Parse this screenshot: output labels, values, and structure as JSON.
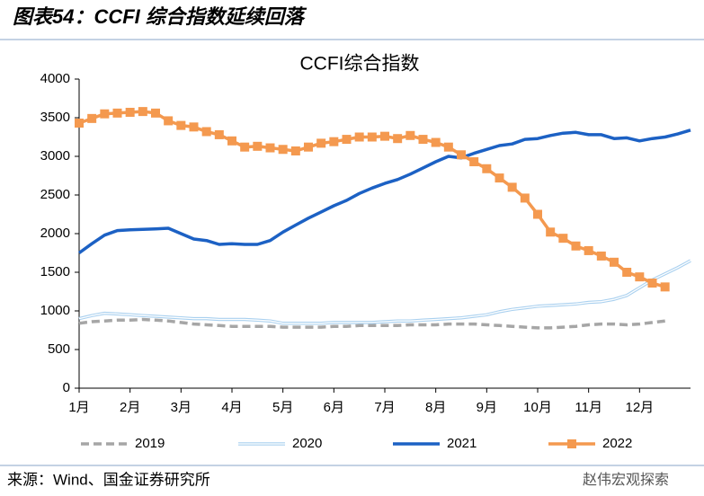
{
  "page_title": "图表54：CCFI 综合指数延续回落",
  "source": "来源：Wind、国金证券研究所",
  "watermark": "赵伟宏观探索",
  "chart_data": {
    "type": "line",
    "title": "CCFI综合指数",
    "x": [
      1,
      1.25,
      1.5,
      1.75,
      2,
      2.25,
      2.5,
      2.75,
      3,
      3.25,
      3.5,
      3.75,
      4,
      4.25,
      4.5,
      4.75,
      5,
      5.25,
      5.5,
      5.75,
      6,
      6.25,
      6.5,
      6.75,
      7,
      7.25,
      7.5,
      7.75,
      8,
      8.25,
      8.5,
      8.75,
      9,
      9.25,
      9.5,
      9.75,
      10,
      10.25,
      10.5,
      10.75,
      11,
      11.25,
      11.5,
      11.75,
      12,
      12.25,
      12.5,
      12.75,
      13
    ],
    "xlim": [
      1,
      13
    ],
    "xticks": [
      {
        "value": 1,
        "label": "1月"
      },
      {
        "value": 2,
        "label": "2月"
      },
      {
        "value": 3,
        "label": "3月"
      },
      {
        "value": 4,
        "label": "4月"
      },
      {
        "value": 5,
        "label": "5月"
      },
      {
        "value": 6,
        "label": "6月"
      },
      {
        "value": 7,
        "label": "7月"
      },
      {
        "value": 8,
        "label": "8月"
      },
      {
        "value": 9,
        "label": "9月"
      },
      {
        "value": 10,
        "label": "10月"
      },
      {
        "value": 11,
        "label": "11月"
      },
      {
        "value": 12,
        "label": "12月"
      }
    ],
    "ylim": [
      0,
      4000
    ],
    "yticks": [
      0,
      500,
      1000,
      1500,
      2000,
      2500,
      3000,
      3500,
      4000
    ],
    "grid": false,
    "legend": "bottom",
    "series": [
      {
        "name": "2019",
        "color": "#a6a6a6",
        "line_style": "dashed",
        "values": [
          840,
          860,
          870,
          880,
          880,
          890,
          880,
          870,
          850,
          830,
          820,
          810,
          800,
          800,
          800,
          800,
          790,
          790,
          790,
          790,
          800,
          800,
          810,
          810,
          810,
          810,
          820,
          820,
          820,
          830,
          830,
          830,
          820,
          810,
          800,
          790,
          780,
          780,
          790,
          800,
          820,
          830,
          830,
          820,
          830,
          850,
          870,
          null,
          null
        ]
      },
      {
        "name": "2020",
        "color": "#a9d0ef",
        "line_style": "double",
        "values": [
          900,
          940,
          970,
          960,
          950,
          940,
          930,
          920,
          910,
          900,
          900,
          890,
          890,
          890,
          880,
          870,
          840,
          840,
          840,
          840,
          850,
          850,
          850,
          850,
          860,
          870,
          870,
          880,
          890,
          900,
          910,
          930,
          950,
          990,
          1020,
          1040,
          1060,
          1070,
          1080,
          1090,
          1110,
          1120,
          1150,
          1200,
          1300,
          1400,
          1480,
          1560,
          1650
        ]
      },
      {
        "name": "2021",
        "color": "#1c61c4",
        "line_style": "solid",
        "values": [
          1750,
          1870,
          1980,
          2040,
          2050,
          2055,
          2060,
          2070,
          2000,
          1930,
          1910,
          1860,
          1870,
          1860,
          1860,
          1910,
          2020,
          2110,
          2200,
          2280,
          2360,
          2430,
          2520,
          2590,
          2650,
          2700,
          2770,
          2850,
          2930,
          3000,
          2980,
          3040,
          3090,
          3140,
          3160,
          3220,
          3230,
          3270,
          3300,
          3310,
          3280,
          3280,
          3230,
          3240,
          3200,
          3230,
          3250,
          3290,
          3340
        ]
      },
      {
        "name": "2022",
        "color": "#f4994f",
        "line_style": "solid",
        "marker": "square",
        "values": [
          3430,
          3490,
          3550,
          3560,
          3570,
          3580,
          3560,
          3460,
          3400,
          3380,
          3320,
          3280,
          3200,
          3120,
          3130,
          3110,
          3090,
          3070,
          3120,
          3170,
          3190,
          3220,
          3250,
          3250,
          3260,
          3230,
          3270,
          3220,
          3180,
          3120,
          3020,
          2930,
          2840,
          2720,
          2600,
          2460,
          2250,
          2020,
          1940,
          1840,
          1780,
          1710,
          1630,
          1500,
          1440,
          1360,
          1310,
          null,
          null
        ]
      }
    ]
  }
}
